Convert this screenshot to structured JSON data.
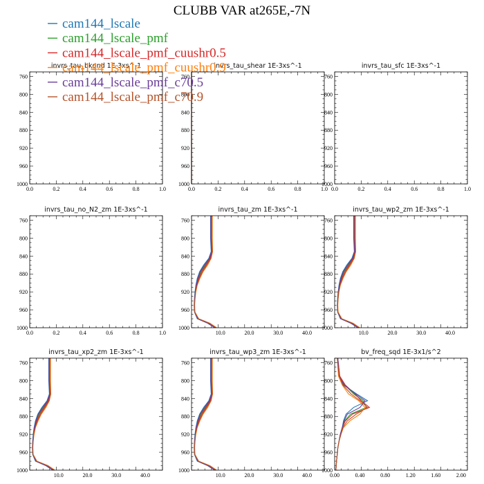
{
  "figure": {
    "title": "CLUBB VAR at265E,-7N"
  },
  "legend": [
    {
      "name": "cam144_lscale",
      "color": "#1f77b4"
    },
    {
      "name": "cam144_lscale_pmf",
      "color": "#2ca02c"
    },
    {
      "name": "cam144_lscale_pmf_cuushr0.5",
      "color": "#d62728"
    },
    {
      "name": "cam144_lscale_pmf_cuushr0.9",
      "color": "#ff7f0e"
    },
    {
      "name": "cam144_lscale_pmf_c70.5",
      "color": "#6a3d9a"
    },
    {
      "name": "cam144_lscale_pmf_c70.9",
      "color": "#b5532a"
    }
  ],
  "chart_data": [
    {
      "type": "line",
      "title": "invrs_tau_bkgnd   1E-3xs^-1",
      "xlim": [
        0,
        1
      ],
      "ylim": [
        1000,
        750
      ],
      "xticks": [
        "0.0",
        "0.2",
        "0.4",
        "0.6",
        "0.8",
        "1.0"
      ],
      "yticks": [
        "760",
        "800",
        "840",
        "880",
        "920",
        "960",
        "1000"
      ],
      "y": [],
      "series": []
    },
    {
      "type": "line",
      "title": "invrs_tau_shear   1E-3xs^-1",
      "xlim": [
        0,
        1
      ],
      "ylim": [
        1000,
        750
      ],
      "xticks": [
        "0.0",
        "0.2",
        "0.4",
        "0.6",
        "0.8",
        "1.0"
      ],
      "yticks": [
        "760",
        "800",
        "840",
        "880",
        "920",
        "960",
        "1000"
      ],
      "y": [
        750,
        1000
      ],
      "series": [
        {
          "color": "#1f77b4",
          "x": [
            0.0,
            0.0
          ]
        },
        {
          "color": "#2ca02c",
          "x": [
            0.0,
            0.0
          ]
        },
        {
          "color": "#d62728",
          "x": [
            0.0,
            0.0
          ]
        },
        {
          "color": "#ff7f0e",
          "x": [
            0.0,
            0.0
          ]
        },
        {
          "color": "#6a3d9a",
          "x": [
            0.0,
            0.0
          ]
        },
        {
          "color": "#b5532a",
          "x": [
            0.0,
            0.0
          ]
        }
      ]
    },
    {
      "type": "line",
      "title": "invrs_tau_sfc   1E-3xs^-1",
      "xlim": [
        0,
        1
      ],
      "ylim": [
        1000,
        750
      ],
      "xticks": [
        "0.0",
        "0.2",
        "0.4",
        "0.6",
        "0.8",
        "1.0"
      ],
      "yticks": [
        "760",
        "800",
        "840",
        "880",
        "920",
        "960",
        "1000"
      ],
      "y": [],
      "series": []
    },
    {
      "type": "line",
      "title": "invrs_tau_no_N2_zm   1E-3xs^-1",
      "xlim": [
        0,
        1
      ],
      "ylim": [
        1000,
        750
      ],
      "xticks": [
        "0.0",
        "0.2",
        "0.4",
        "0.6",
        "0.8",
        "1.0"
      ],
      "yticks": [
        "760",
        "800",
        "840",
        "880",
        "920",
        "960",
        "1000"
      ],
      "y": [],
      "series": []
    },
    {
      "type": "line",
      "title": "invrs_tau_zm   1E-3xs^-1",
      "xlim": [
        0,
        46
      ],
      "ylim": [
        1000,
        750
      ],
      "xticks": [
        "10.0",
        "20.0",
        "30.0",
        "40.0"
      ],
      "yticks": [
        "760",
        "800",
        "840",
        "880",
        "920",
        "960",
        "1000"
      ],
      "y": [
        750,
        800,
        830,
        845,
        860,
        875,
        890,
        905,
        920,
        935,
        950,
        965,
        980,
        990,
        1000
      ],
      "series": [
        {
          "color": "#1f77b4",
          "x": [
            6.6,
            6.6,
            6.8,
            6.0,
            4.2,
            2.8,
            2.0,
            1.5,
            1.2,
            1.0,
            0.9,
            1.0,
            2.0,
            5.6,
            8.0
          ]
        },
        {
          "color": "#2ca02c",
          "x": [
            6.8,
            6.8,
            7.0,
            6.3,
            4.8,
            3.2,
            2.3,
            1.7,
            1.3,
            1.1,
            1.0,
            1.1,
            2.2,
            5.8,
            8.2
          ]
        },
        {
          "color": "#d62728",
          "x": [
            6.9,
            6.9,
            7.1,
            6.5,
            5.0,
            3.5,
            2.5,
            1.8,
            1.4,
            1.1,
            1.0,
            1.1,
            2.3,
            6.0,
            8.4
          ]
        },
        {
          "color": "#ff7f0e",
          "x": [
            7.2,
            7.2,
            7.3,
            6.8,
            5.6,
            4.0,
            2.9,
            2.0,
            1.5,
            1.2,
            1.1,
            1.2,
            2.5,
            6.4,
            8.7
          ]
        },
        {
          "color": "#6a3d9a",
          "x": [
            6.7,
            6.7,
            6.9,
            6.2,
            4.5,
            3.0,
            2.2,
            1.6,
            1.3,
            1.1,
            1.0,
            1.1,
            2.1,
            5.7,
            8.1
          ]
        },
        {
          "color": "#b5532a",
          "x": [
            7.0,
            7.0,
            7.2,
            6.7,
            5.3,
            3.8,
            2.7,
            1.9,
            1.4,
            1.2,
            1.0,
            1.1,
            2.4,
            6.2,
            8.5
          ]
        }
      ]
    },
    {
      "type": "line",
      "title": "invrs_tau_wp2_zm   1E-3xs^-1",
      "xlim": [
        0,
        46
      ],
      "ylim": [
        1000,
        750
      ],
      "xticks": [
        "10.0",
        "20.0",
        "30.0",
        "40.0"
      ],
      "yticks": [
        "760",
        "800",
        "840",
        "880",
        "920",
        "960",
        "1000"
      ],
      "y": [
        750,
        800,
        830,
        845,
        860,
        875,
        890,
        905,
        920,
        935,
        950,
        965,
        980,
        990,
        1000
      ],
      "series": [
        {
          "color": "#1f77b4",
          "x": [
            6.6,
            6.6,
            6.8,
            6.0,
            4.2,
            2.8,
            2.0,
            1.5,
            1.2,
            1.0,
            0.9,
            1.0,
            2.0,
            5.6,
            8.0
          ]
        },
        {
          "color": "#2ca02c",
          "x": [
            6.8,
            6.8,
            7.0,
            6.3,
            4.8,
            3.2,
            2.3,
            1.7,
            1.3,
            1.1,
            1.0,
            1.1,
            2.2,
            5.8,
            8.2
          ]
        },
        {
          "color": "#d62728",
          "x": [
            6.9,
            6.9,
            7.1,
            6.5,
            5.0,
            3.5,
            2.5,
            1.8,
            1.4,
            1.1,
            1.0,
            1.1,
            2.3,
            6.0,
            8.4
          ]
        },
        {
          "color": "#ff7f0e",
          "x": [
            7.2,
            7.2,
            7.3,
            6.8,
            5.6,
            4.0,
            2.9,
            2.0,
            1.5,
            1.2,
            1.1,
            1.2,
            2.5,
            6.4,
            8.7
          ]
        },
        {
          "color": "#6a3d9a",
          "x": [
            6.7,
            6.7,
            6.9,
            6.2,
            4.5,
            3.0,
            2.2,
            1.6,
            1.3,
            1.1,
            1.0,
            1.1,
            2.1,
            5.7,
            8.1
          ]
        },
        {
          "color": "#b5532a",
          "x": [
            7.0,
            7.0,
            7.2,
            6.7,
            5.3,
            3.8,
            2.7,
            1.9,
            1.4,
            1.2,
            1.0,
            1.1,
            2.4,
            6.2,
            8.5
          ]
        }
      ]
    },
    {
      "type": "line",
      "title": "invrs_tau_xp2_zm   1E-3xs^-1",
      "xlim": [
        0,
        46
      ],
      "ylim": [
        1000,
        750
      ],
      "xticks": [
        "10.0",
        "20.0",
        "30.0",
        "40.0"
      ],
      "yticks": [
        "760",
        "800",
        "840",
        "880",
        "920",
        "960",
        "1000"
      ],
      "y": [
        750,
        800,
        830,
        845,
        860,
        875,
        890,
        905,
        920,
        935,
        950,
        965,
        980,
        990,
        1000
      ],
      "series": [
        {
          "color": "#1f77b4",
          "x": [
            6.6,
            6.6,
            6.8,
            6.0,
            4.2,
            2.8,
            2.0,
            1.5,
            1.2,
            1.0,
            0.9,
            1.0,
            2.0,
            5.6,
            8.0
          ]
        },
        {
          "color": "#2ca02c",
          "x": [
            6.8,
            6.8,
            7.0,
            6.3,
            4.8,
            3.2,
            2.3,
            1.7,
            1.3,
            1.1,
            1.0,
            1.1,
            2.2,
            5.8,
            8.2
          ]
        },
        {
          "color": "#d62728",
          "x": [
            6.9,
            6.9,
            7.1,
            6.5,
            5.0,
            3.5,
            2.5,
            1.8,
            1.4,
            1.1,
            1.0,
            1.1,
            2.3,
            6.0,
            8.4
          ]
        },
        {
          "color": "#ff7f0e",
          "x": [
            7.2,
            7.2,
            7.3,
            6.8,
            5.6,
            4.0,
            2.9,
            2.0,
            1.5,
            1.2,
            1.1,
            1.2,
            2.5,
            6.4,
            8.7
          ]
        },
        {
          "color": "#6a3d9a",
          "x": [
            6.7,
            6.7,
            6.9,
            6.2,
            4.5,
            3.0,
            2.2,
            1.6,
            1.3,
            1.1,
            1.0,
            1.1,
            2.1,
            5.7,
            8.1
          ]
        },
        {
          "color": "#b5532a",
          "x": [
            7.0,
            7.0,
            7.2,
            6.7,
            5.3,
            3.8,
            2.7,
            1.9,
            1.4,
            1.2,
            1.0,
            1.1,
            2.4,
            6.2,
            8.5
          ]
        }
      ]
    },
    {
      "type": "line",
      "title": "invrs_tau_wp3_zm   1E-3xs^-1",
      "xlim": [
        0,
        46
      ],
      "ylim": [
        1000,
        750
      ],
      "xticks": [
        "10.0",
        "20.0",
        "30.0",
        "40.0"
      ],
      "yticks": [
        "760",
        "800",
        "840",
        "880",
        "920",
        "960",
        "1000"
      ],
      "y": [
        750,
        800,
        830,
        845,
        860,
        875,
        890,
        905,
        920,
        935,
        950,
        965,
        980,
        990,
        1000
      ],
      "series": [
        {
          "color": "#1f77b4",
          "x": [
            6.6,
            6.6,
            6.8,
            6.0,
            4.2,
            2.8,
            2.0,
            1.5,
            1.2,
            1.0,
            0.9,
            1.0,
            2.0,
            5.6,
            8.0
          ]
        },
        {
          "color": "#2ca02c",
          "x": [
            6.8,
            6.8,
            7.0,
            6.3,
            4.8,
            3.2,
            2.3,
            1.7,
            1.3,
            1.1,
            1.0,
            1.1,
            2.2,
            5.8,
            8.2
          ]
        },
        {
          "color": "#d62728",
          "x": [
            6.9,
            6.9,
            7.1,
            6.5,
            5.0,
            3.5,
            2.5,
            1.8,
            1.4,
            1.1,
            1.0,
            1.1,
            2.3,
            6.0,
            8.4
          ]
        },
        {
          "color": "#ff7f0e",
          "x": [
            7.2,
            7.2,
            7.3,
            6.8,
            5.6,
            4.0,
            2.9,
            2.0,
            1.5,
            1.2,
            1.1,
            1.2,
            2.5,
            6.4,
            8.7
          ]
        },
        {
          "color": "#6a3d9a",
          "x": [
            6.7,
            6.7,
            6.9,
            6.2,
            4.5,
            3.0,
            2.2,
            1.6,
            1.3,
            1.1,
            1.0,
            1.1,
            2.1,
            5.7,
            8.1
          ]
        },
        {
          "color": "#b5532a",
          "x": [
            7.0,
            7.0,
            7.2,
            6.7,
            5.3,
            3.8,
            2.7,
            1.9,
            1.4,
            1.2,
            1.0,
            1.1,
            2.4,
            6.2,
            8.5
          ]
        }
      ]
    },
    {
      "type": "line",
      "title": "bv_freq_sqd   1E-3x1/s^2",
      "xlim": [
        0,
        2.1
      ],
      "ylim": [
        1000,
        750
      ],
      "xticks": [
        "0.00",
        "0.40",
        "0.80",
        "1.20",
        "1.60",
        "2.00"
      ],
      "yticks": [
        "760",
        "800",
        "840",
        "880",
        "920",
        "960",
        "1000"
      ],
      "y": [
        750,
        790,
        810,
        830,
        845,
        860,
        875,
        890,
        905,
        920,
        935,
        950,
        965,
        980,
        1000
      ],
      "series": [
        {
          "color": "#1f77b4",
          "x": [
            0.05,
            0.07,
            0.14,
            0.35,
            0.52,
            0.3,
            0.18,
            0.14,
            0.12,
            0.09,
            0.07,
            0.05,
            0.04,
            0.03,
            0.02
          ]
        },
        {
          "color": "#2ca02c",
          "x": [
            0.05,
            0.08,
            0.16,
            0.3,
            0.45,
            0.5,
            0.25,
            0.16,
            0.12,
            0.09,
            0.07,
            0.05,
            0.04,
            0.03,
            0.02
          ]
        },
        {
          "color": "#d62728",
          "x": [
            0.05,
            0.08,
            0.17,
            0.32,
            0.42,
            0.55,
            0.28,
            0.17,
            0.12,
            0.09,
            0.07,
            0.05,
            0.04,
            0.03,
            0.02
          ]
        },
        {
          "color": "#ff7f0e",
          "x": [
            0.04,
            0.06,
            0.12,
            0.22,
            0.38,
            0.48,
            0.4,
            0.24,
            0.14,
            0.1,
            0.07,
            0.05,
            0.04,
            0.03,
            0.02
          ]
        },
        {
          "color": "#6a3d9a",
          "x": [
            0.05,
            0.07,
            0.15,
            0.33,
            0.48,
            0.4,
            0.2,
            0.15,
            0.12,
            0.09,
            0.07,
            0.05,
            0.04,
            0.03,
            0.02
          ]
        },
        {
          "color": "#b5532a",
          "x": [
            0.04,
            0.07,
            0.13,
            0.26,
            0.4,
            0.52,
            0.34,
            0.2,
            0.13,
            0.1,
            0.07,
            0.05,
            0.04,
            0.03,
            0.02
          ]
        }
      ]
    }
  ]
}
